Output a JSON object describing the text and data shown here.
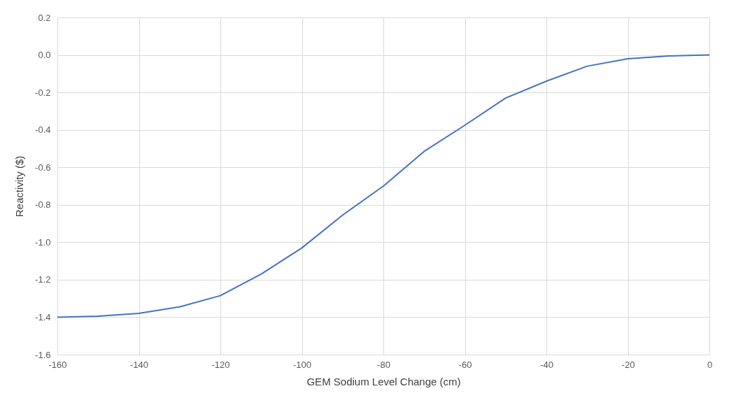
{
  "chart_data": {
    "type": "line",
    "xlabel": "GEM Sodium Level Change (cm)",
    "ylabel": "Reactivity ($)",
    "x": [
      -160,
      -150,
      -140,
      -130,
      -120,
      -110,
      -100,
      -90,
      -80,
      -70,
      -60,
      -50,
      -40,
      -30,
      -20,
      -10,
      0
    ],
    "series": [
      {
        "color": "#4472c4",
        "values": [
          -1.4,
          -1.395,
          -1.38,
          -1.345,
          -1.285,
          -1.17,
          -1.03,
          -0.855,
          -0.7,
          -0.515,
          -0.375,
          -0.23,
          -0.14,
          -0.06,
          -0.02,
          -0.005,
          0.0
        ]
      }
    ],
    "xlim": [
      -160,
      0
    ],
    "xticks": [
      -160,
      -140,
      -120,
      -100,
      -80,
      -60,
      -40,
      -20,
      0
    ],
    "ylim": [
      -1.6,
      0.2
    ],
    "yticks": [
      {
        "value": -1.6,
        "label": "-1.6"
      },
      {
        "value": -1.4,
        "label": "-1.4"
      },
      {
        "value": -1.2,
        "label": "-1.2"
      },
      {
        "value": -1.0,
        "label": "-1.0"
      },
      {
        "value": -0.8,
        "label": "-0.8"
      },
      {
        "value": -0.6,
        "label": "-0.6"
      },
      {
        "value": -0.4,
        "label": "-0.4"
      },
      {
        "value": -0.2,
        "label": "-0.2"
      },
      {
        "value": 0.0,
        "label": "0.0"
      },
      {
        "value": 0.2,
        "label": "0.2"
      }
    ],
    "grid": true,
    "marker": "none",
    "line_style": "solid"
  }
}
